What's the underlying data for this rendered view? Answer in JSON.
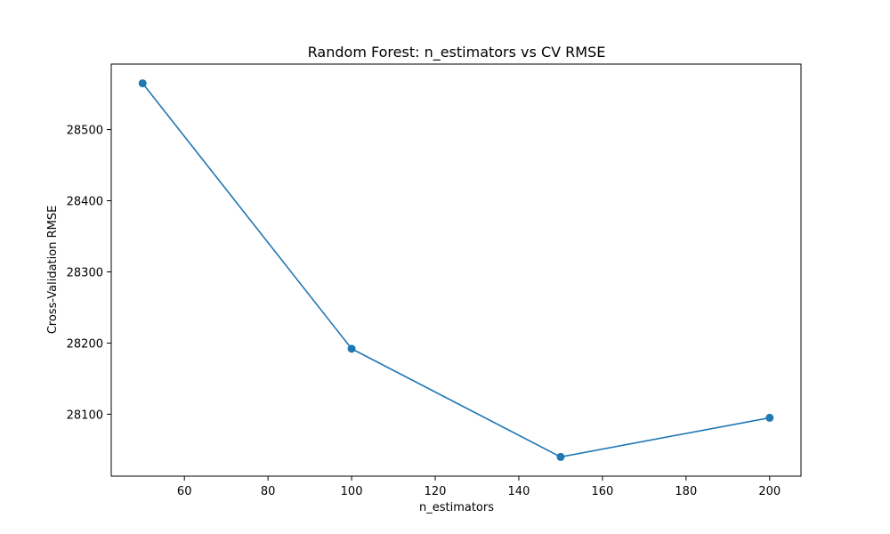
{
  "chart_data": {
    "type": "line",
    "title": "Random Forest: n_estimators vs CV RMSE",
    "xlabel": "n_estimators",
    "ylabel": "Cross-Validation RMSE",
    "x": [
      50,
      100,
      150,
      200
    ],
    "series": [
      {
        "values": [
          28565,
          28192,
          28040,
          28095
        ],
        "color": "#1f77b4",
        "marker": "circle"
      }
    ],
    "xlim": [
      42.5,
      207.5
    ],
    "ylim": [
      28013,
      28592
    ],
    "xticks": [
      60,
      80,
      100,
      120,
      140,
      160,
      180,
      200
    ],
    "yticks": [
      28100,
      28200,
      28300,
      28400,
      28500
    ],
    "grid": false
  }
}
